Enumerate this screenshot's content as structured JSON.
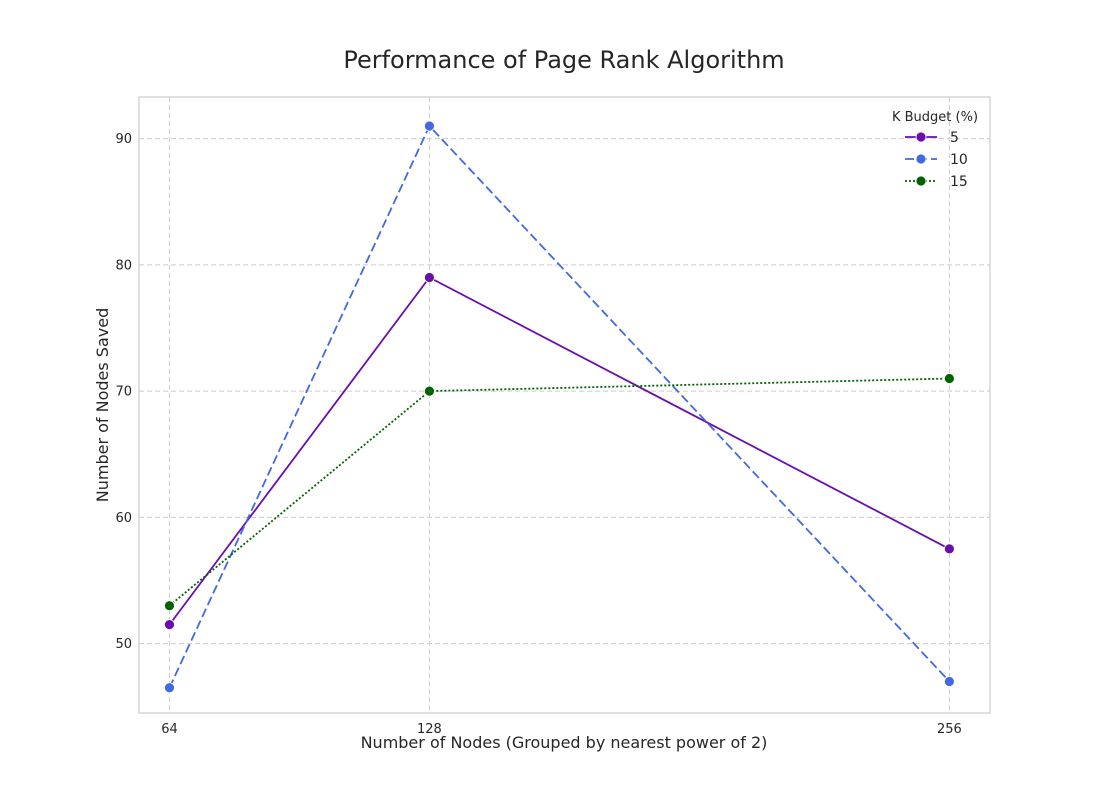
{
  "chart_data": {
    "type": "line",
    "title": "Performance of Page Rank Algorithm",
    "xlabel": "Number of Nodes (Grouped by nearest power of 2)",
    "ylabel": "Number of Nodes Saved",
    "x": [
      64,
      128,
      256
    ],
    "x_tick_labels": [
      "64",
      "128",
      "256"
    ],
    "xlim": [
      56.5,
      266
    ],
    "ylim": [
      44.5,
      93.3
    ],
    "y_ticks": [
      50,
      60,
      70,
      80,
      90
    ],
    "y_tick_labels": [
      "50",
      "60",
      "70",
      "80",
      "90"
    ],
    "grid": true,
    "legend": {
      "title": "K Budget (%)",
      "placement": "top-right"
    },
    "series": [
      {
        "name": "5",
        "values": [
          51.5,
          79,
          57.5
        ],
        "color": "#6a0dad",
        "line_style": "solid"
      },
      {
        "name": "10",
        "values": [
          46.5,
          91,
          47
        ],
        "color": "#4169e1",
        "line_style": "dashed"
      },
      {
        "name": "15",
        "values": [
          53,
          70,
          71
        ],
        "color": "#006400",
        "line_style": "dotted"
      }
    ]
  }
}
